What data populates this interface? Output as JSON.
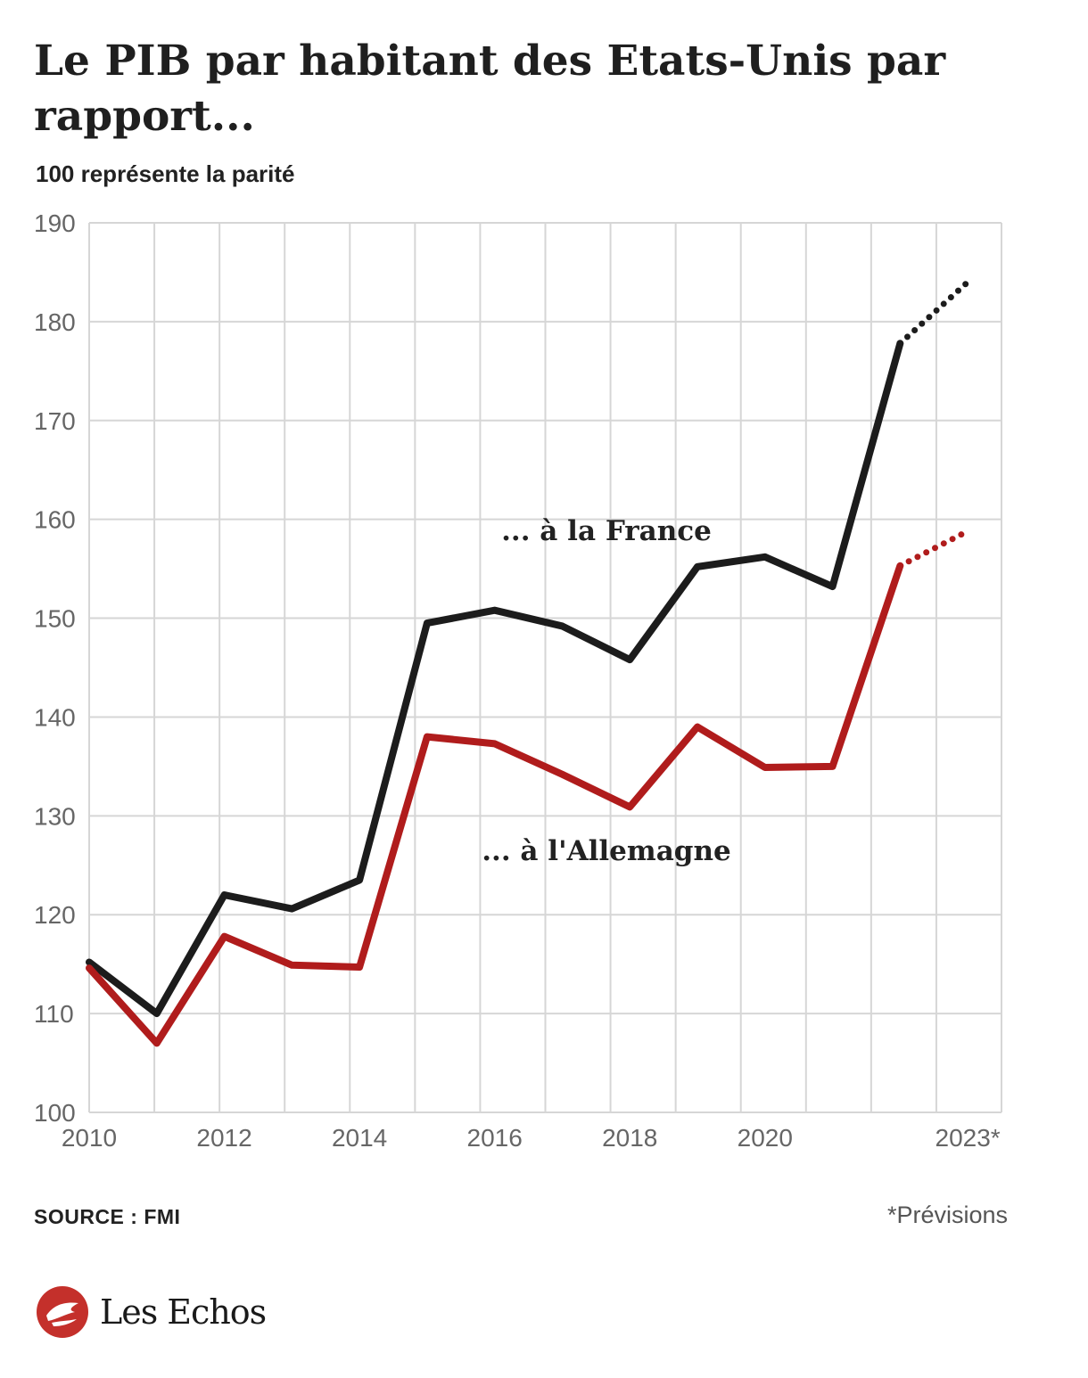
{
  "header": {
    "title": "Le PIB par habitant des Etats-Unis par rapport...",
    "subtitle": "100 représente la parité"
  },
  "footer": {
    "source": "SOURCE : FMI",
    "note": "*Prévisions",
    "brand": "Les Echos"
  },
  "colors": {
    "france": "#1c1c1c",
    "allemagne": "#b01c1c",
    "grid": "#d6d6d6",
    "brand": "#c4302b"
  },
  "chart_data": {
    "type": "line",
    "title": "Le PIB par habitant des Etats-Unis par rapport...",
    "subtitle": "100 représente la parité",
    "x": [
      2010,
      2011,
      2012,
      2013,
      2014,
      2015,
      2016,
      2017,
      2018,
      2019,
      2020,
      2021,
      2022,
      2023
    ],
    "x_tick_labels": [
      {
        "x": 2010,
        "label": "2010"
      },
      {
        "x": 2012,
        "label": "2012"
      },
      {
        "x": 2014,
        "label": "2014"
      },
      {
        "x": 2016,
        "label": "2016"
      },
      {
        "x": 2018,
        "label": "2018"
      },
      {
        "x": 2020,
        "label": "2020"
      },
      {
        "x": 2023,
        "label": "2023*"
      }
    ],
    "y_ticks": [
      100,
      110,
      120,
      130,
      140,
      150,
      160,
      170,
      180,
      190
    ],
    "xlim": [
      2010,
      2023.5
    ],
    "ylim": [
      100,
      190
    ],
    "grid": true,
    "forecast_from": 2022,
    "series": [
      {
        "name": "... à la France",
        "color": "#1c1c1c",
        "values": [
          115.2,
          110.0,
          122.0,
          120.6,
          123.5,
          149.5,
          150.8,
          149.2,
          145.8,
          155.2,
          156.2,
          153.2,
          177.8,
          184.0
        ]
      },
      {
        "name": "... à l'Allemagne",
        "color": "#b01c1c",
        "values": [
          114.6,
          107.0,
          117.8,
          114.9,
          114.7,
          138.0,
          137.3,
          134.2,
          130.9,
          139.0,
          134.9,
          135.0,
          155.3,
          158.8
        ]
      }
    ]
  }
}
